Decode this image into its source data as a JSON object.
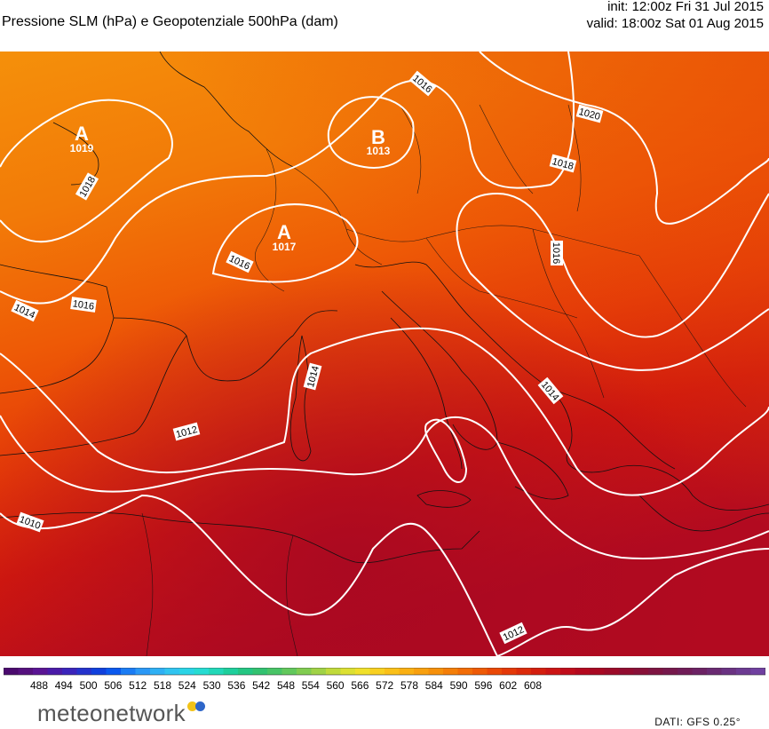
{
  "header": {
    "title": "Pressione SLM (hPa) e Geopotenziale 500hPa (dam)",
    "init": "init: 12:00z Fri 31 Jul 2015",
    "valid": "valid: 18:00z Sat 01 Aug 2015"
  },
  "map": {
    "isobar_labels": [
      "1016",
      "1020",
      "1018",
      "1016",
      "1016",
      "1016",
      "1014",
      "1014",
      "1014",
      "1012",
      "1012",
      "1010",
      "1018"
    ],
    "pressure_centers": [
      {
        "letter": "A",
        "value": "1019"
      },
      {
        "letter": "B",
        "value": "1013"
      },
      {
        "letter": "A",
        "value": "1017"
      }
    ]
  },
  "legend": {
    "ticks": [
      "488",
      "494",
      "500",
      "506",
      "512",
      "518",
      "524",
      "530",
      "536",
      "542",
      "548",
      "554",
      "560",
      "566",
      "572",
      "578",
      "584",
      "590",
      "596",
      "602",
      "608"
    ],
    "colors": [
      "#4a0a6e",
      "#55107e",
      "#5a1494",
      "#4a1aa8",
      "#3a24bb",
      "#2432cc",
      "#1040dd",
      "#0a58ee",
      "#1a7cf4",
      "#2a98f6",
      "#2eb0f4",
      "#30c4f0",
      "#2ad4e6",
      "#26dcd2",
      "#22d8b8",
      "#1ecf9c",
      "#24c682",
      "#32c270",
      "#48c466",
      "#62c85c",
      "#80cc50",
      "#a0d246",
      "#c0da3a",
      "#dce032",
      "#f0e02a",
      "#f8d020",
      "#fac018",
      "#fab012",
      "#f8a00e",
      "#f6900a",
      "#f47e08",
      "#f26c06",
      "#ee5a06",
      "#ea4806",
      "#e43808",
      "#dc2a0a",
      "#d41e0e",
      "#cc1414",
      "#c00c1a",
      "#b4081e",
      "#a80822",
      "#9c0a28",
      "#920c30",
      "#881038",
      "#7e1442",
      "#76184c",
      "#701c58",
      "#6c2264",
      "#6a2a72",
      "#6a3282",
      "#6c3a92",
      "#7040a0"
    ],
    "colormap_note": "geopotential 500hPa (dam)"
  },
  "footer": {
    "brand": "meteonetwork",
    "data_source": "DATI:  GFS  0.25°"
  }
}
